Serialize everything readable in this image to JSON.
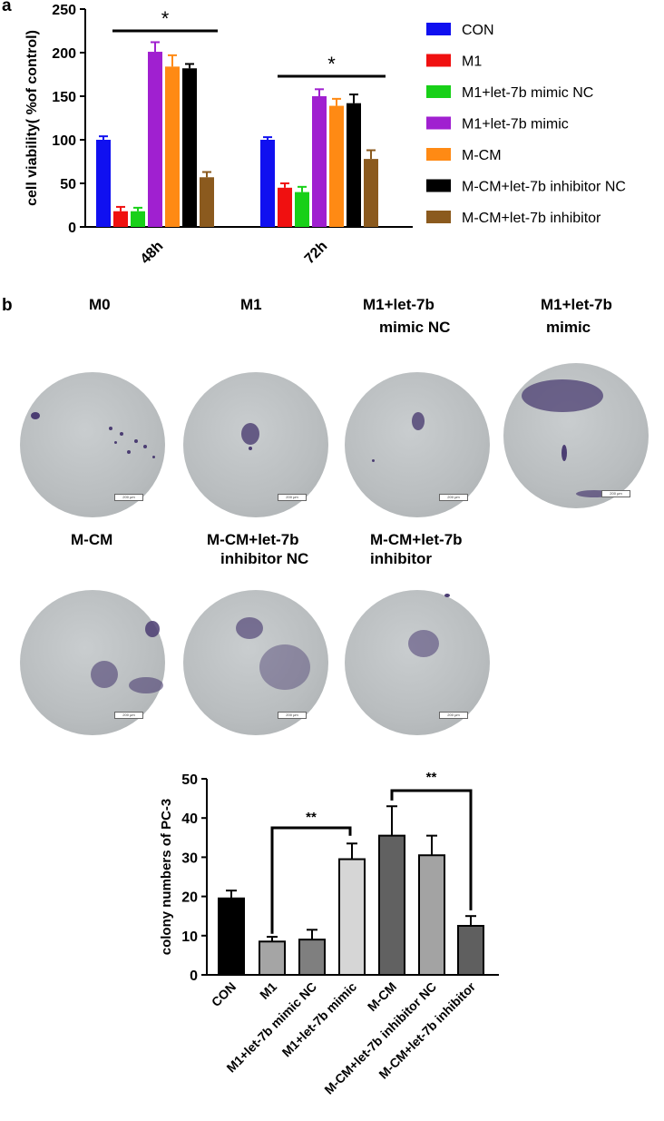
{
  "panels": {
    "a_label": "a",
    "b_label": "b"
  },
  "chart_data": [
    {
      "type": "bar",
      "ylabel": "cell viability( %of control)",
      "ylim": [
        0,
        250
      ],
      "yticks": [
        0,
        50,
        100,
        150,
        200,
        250
      ],
      "categories": [
        "48h",
        "72h"
      ],
      "legend_position": "right",
      "series": [
        {
          "name": "CON",
          "color": "#1010f0",
          "values": [
            100,
            100
          ],
          "errors": [
            4,
            3
          ]
        },
        {
          "name": "M1",
          "color": "#f01010",
          "values": [
            18,
            45
          ],
          "errors": [
            5,
            5
          ]
        },
        {
          "name": "M1+let-7b mimic NC",
          "color": "#18d018",
          "values": [
            18,
            40
          ],
          "errors": [
            4,
            6
          ]
        },
        {
          "name": "M1+let-7b mimic",
          "color": "#a020d0",
          "values": [
            201,
            150
          ],
          "errors": [
            11,
            8
          ]
        },
        {
          "name": "M-CM",
          "color": "#ff8a14",
          "values": [
            184,
            139
          ],
          "errors": [
            13,
            8
          ]
        },
        {
          "name": "M-CM+let-7b inhibitor NC",
          "color": "#000000",
          "values": [
            182,
            142
          ],
          "errors": [
            5,
            10
          ]
        },
        {
          "name": "M-CM+let-7b inhibitor",
          "color": "#8b5a1e",
          "values": [
            57,
            78
          ],
          "errors": [
            6,
            10
          ]
        }
      ],
      "annotations": [
        {
          "label": "*",
          "group": "48h"
        },
        {
          "label": "*",
          "group": "72h"
        }
      ]
    },
    {
      "type": "bar",
      "ylabel": "colony numbers of PC-3",
      "ylim": [
        0,
        50
      ],
      "yticks": [
        0,
        10,
        20,
        30,
        40,
        50
      ],
      "categories": [
        "CON",
        "M1",
        "M1+let-7b mimic NC",
        "M1+let-7b mimic",
        "M-CM",
        "M-CM+let-7b inhibitor NC",
        "M-CM+let-7b inhibitor"
      ],
      "values": [
        19.5,
        8.5,
        9,
        29.5,
        35.5,
        30.5,
        12.5
      ],
      "errors": [
        2,
        1.2,
        2.5,
        4,
        7.5,
        5,
        2.5
      ],
      "colors": [
        "#000000",
        "#a5a5a5",
        "#7f7f7f",
        "#d6d6d6",
        "#616161",
        "#a3a3a3",
        "#5f5f5f"
      ],
      "annotations": [
        {
          "label": "**",
          "from": "M1",
          "to": "M1+let-7b mimic"
        },
        {
          "label": "**",
          "from": "M-CM",
          "to": "M-CM+let-7b inhibitor"
        }
      ]
    }
  ],
  "plates": {
    "row1": [
      {
        "title_line1": "M0",
        "title_line2": "",
        "scale": "200 μm"
      },
      {
        "title_line1": "M1",
        "title_line2": "",
        "scale": "200 μm"
      },
      {
        "title_line1": "M1+let-7b",
        "title_line2": "mimic NC",
        "scale": "200 μm"
      },
      {
        "title_line1": "M1+let-7b",
        "title_line2": "mimic",
        "scale": "200 μm"
      }
    ],
    "row2": [
      {
        "title_line1": "M-CM",
        "title_line2": "",
        "scale": "200 μm"
      },
      {
        "title_line1": "M-CM+let-7b",
        "title_line2": "inhibitor  NC",
        "scale": "200 μm"
      },
      {
        "title_line1": "M-CM+let-7b",
        "title_line2": "inhibitor",
        "scale": "200 μm"
      }
    ]
  }
}
